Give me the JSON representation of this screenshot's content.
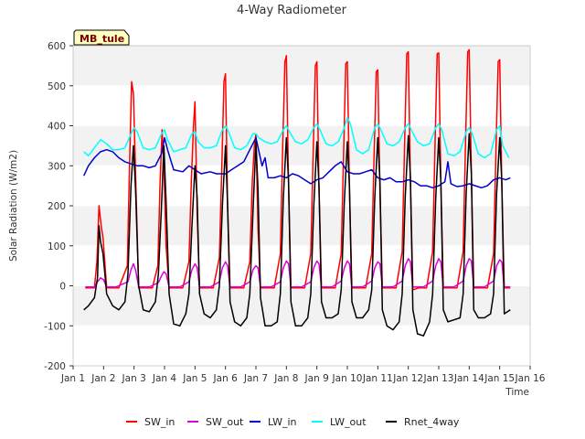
{
  "chart_data": {
    "type": "line",
    "title": "4-Way Radiometer",
    "xlabel": "Time",
    "ylabel": "Solar Radiation (W/m2)",
    "site_label": "MB_tule",
    "xlim": [
      1,
      16
    ],
    "ylim": [
      -200,
      600
    ],
    "x_ticks": [
      1,
      2,
      3,
      4,
      5,
      6,
      7,
      8,
      9,
      10,
      11,
      12,
      13,
      14,
      15,
      16
    ],
    "x_tick_labels": [
      "Jan 1",
      "Jan 2",
      "Jan 3",
      "Jan 4",
      "Jan 5",
      "Jan 6",
      "Jan 7",
      "Jan 8",
      "Jan 9",
      "Jan 10",
      "Jan 11",
      "Jan 12",
      "Jan 13",
      "Jan 14",
      "Jan 15",
      "Jan 16"
    ],
    "y_ticks": [
      -200,
      -100,
      0,
      100,
      200,
      300,
      400,
      500,
      600
    ],
    "y_tick_labels": [
      "-200",
      "-100",
      "0",
      "100",
      "200",
      "300",
      "400",
      "500",
      "600"
    ],
    "grid": true,
    "legend_position": "bottom",
    "series": [
      {
        "name": "SW_in",
        "color": "#ff0000",
        "x": [
          1.4,
          1.7,
          1.78,
          1.85,
          1.92,
          1.98,
          2.1,
          2.3,
          2.5,
          2.78,
          2.85,
          2.92,
          2.98,
          3.05,
          3.15,
          3.35,
          3.6,
          3.78,
          3.85,
          3.92,
          3.98,
          4.05,
          4.15,
          4.4,
          4.6,
          4.8,
          4.88,
          4.95,
          5.0,
          5.07,
          5.15,
          5.35,
          5.6,
          5.8,
          5.88,
          5.95,
          6.0,
          6.07,
          6.15,
          6.35,
          6.6,
          6.8,
          6.88,
          6.95,
          7.0,
          7.07,
          7.15,
          7.35,
          7.6,
          7.8,
          7.88,
          7.95,
          8.0,
          8.07,
          8.15,
          8.35,
          8.6,
          8.8,
          8.88,
          8.95,
          9.0,
          9.07,
          9.15,
          9.35,
          9.6,
          9.8,
          9.88,
          9.95,
          10.0,
          10.07,
          10.15,
          10.35,
          10.6,
          10.8,
          10.88,
          10.95,
          11.0,
          11.07,
          11.15,
          11.35,
          11.6,
          11.8,
          11.88,
          11.95,
          12.0,
          12.07,
          12.15,
          12.35,
          12.6,
          12.8,
          12.88,
          12.95,
          13.0,
          13.07,
          13.15,
          13.35,
          13.6,
          13.8,
          13.88,
          13.95,
          14.0,
          14.07,
          14.15,
          14.35,
          14.6,
          14.8,
          14.88,
          14.95,
          15.0,
          15.07,
          15.15,
          15.35
        ],
        "values": [
          -5,
          -5,
          60,
          200,
          150,
          120,
          -5,
          -5,
          -5,
          50,
          300,
          510,
          480,
          280,
          -5,
          -5,
          -5,
          50,
          250,
          390,
          300,
          100,
          -5,
          -5,
          -5,
          60,
          260,
          400,
          460,
          180,
          -5,
          -5,
          -5,
          70,
          300,
          510,
          530,
          200,
          -5,
          -5,
          -5,
          60,
          260,
          350,
          380,
          140,
          -5,
          -5,
          -5,
          80,
          350,
          560,
          575,
          250,
          -5,
          -5,
          -5,
          80,
          340,
          550,
          560,
          240,
          -5,
          -5,
          -5,
          80,
          340,
          555,
          560,
          240,
          -5,
          -5,
          -5,
          80,
          330,
          535,
          540,
          230,
          -5,
          -5,
          -5,
          85,
          360,
          580,
          585,
          260,
          -10,
          -5,
          -5,
          85,
          360,
          580,
          582,
          260,
          -5,
          -5,
          -5,
          85,
          360,
          585,
          590,
          280,
          -5,
          -5,
          -5,
          80,
          350,
          560,
          565,
          250,
          -5,
          -5
        ]
      },
      {
        "name": "SW_out",
        "color": "#dd00dd",
        "x": [
          1.4,
          1.7,
          1.8,
          1.9,
          2.0,
          2.1,
          2.4,
          2.8,
          2.9,
          2.98,
          3.05,
          3.15,
          3.5,
          3.8,
          3.9,
          3.98,
          4.05,
          4.15,
          4.5,
          4.8,
          4.9,
          5.0,
          5.07,
          5.15,
          5.5,
          5.8,
          5.9,
          6.0,
          6.07,
          6.15,
          6.5,
          6.8,
          6.9,
          7.0,
          7.07,
          7.15,
          7.5,
          7.8,
          7.9,
          8.0,
          8.07,
          8.15,
          8.5,
          8.8,
          8.9,
          9.0,
          9.07,
          9.15,
          9.5,
          9.8,
          9.9,
          10.0,
          10.07,
          10.15,
          10.5,
          10.8,
          10.9,
          11.0,
          11.07,
          11.15,
          11.5,
          11.8,
          11.9,
          12.0,
          12.07,
          12.15,
          12.5,
          12.8,
          12.9,
          13.0,
          13.07,
          13.15,
          13.5,
          13.8,
          13.9,
          14.0,
          14.07,
          14.15,
          14.5,
          14.8,
          14.9,
          15.0,
          15.07,
          15.15,
          15.35
        ],
        "values": [
          -3,
          -3,
          10,
          20,
          15,
          -3,
          -3,
          10,
          40,
          55,
          40,
          -3,
          -3,
          8,
          25,
          35,
          30,
          -3,
          -3,
          10,
          40,
          55,
          45,
          -3,
          -3,
          10,
          45,
          60,
          50,
          -3,
          -3,
          10,
          40,
          50,
          45,
          -3,
          -3,
          10,
          45,
          62,
          55,
          -3,
          -3,
          10,
          45,
          62,
          55,
          -3,
          -3,
          12,
          45,
          62,
          55,
          -3,
          -3,
          12,
          45,
          60,
          55,
          -3,
          -3,
          12,
          50,
          68,
          60,
          -3,
          -3,
          12,
          50,
          68,
          60,
          -3,
          -3,
          12,
          50,
          68,
          62,
          -3,
          -3,
          12,
          50,
          65,
          60,
          -3,
          -3
        ]
      },
      {
        "name": "LW_in",
        "color": "#0000cc",
        "x": [
          1.35,
          1.5,
          1.7,
          1.9,
          2.1,
          2.3,
          2.5,
          2.7,
          2.9,
          3.1,
          3.3,
          3.5,
          3.7,
          3.9,
          4.0,
          4.1,
          4.3,
          4.6,
          4.8,
          5.0,
          5.2,
          5.5,
          5.7,
          5.9,
          6.0,
          6.2,
          6.4,
          6.6,
          6.8,
          7.0,
          7.2,
          7.3,
          7.4,
          7.6,
          7.8,
          8.0,
          8.2,
          8.4,
          8.6,
          8.8,
          9.0,
          9.2,
          9.4,
          9.6,
          9.8,
          10.0,
          10.2,
          10.4,
          10.6,
          10.8,
          11.0,
          11.2,
          11.4,
          11.6,
          11.8,
          12.0,
          12.2,
          12.4,
          12.6,
          12.8,
          13.0,
          13.2,
          13.3,
          13.4,
          13.6,
          13.8,
          14.0,
          14.2,
          14.4,
          14.6,
          14.8,
          15.0,
          15.2,
          15.35
        ],
        "values": [
          275,
          300,
          320,
          335,
          340,
          335,
          320,
          310,
          305,
          300,
          300,
          295,
          300,
          330,
          370,
          340,
          290,
          285,
          300,
          290,
          280,
          285,
          280,
          280,
          280,
          290,
          300,
          310,
          340,
          370,
          300,
          320,
          270,
          270,
          275,
          270,
          280,
          275,
          265,
          255,
          265,
          270,
          285,
          300,
          310,
          285,
          280,
          280,
          285,
          290,
          270,
          265,
          270,
          260,
          260,
          265,
          260,
          250,
          250,
          245,
          250,
          260,
          310,
          255,
          248,
          250,
          255,
          250,
          245,
          250,
          265,
          270,
          265,
          270
        ]
      },
      {
        "name": "LW_out",
        "color": "#00ffff",
        "x": [
          1.35,
          1.5,
          1.7,
          1.9,
          2.1,
          2.3,
          2.5,
          2.7,
          2.9,
          3.0,
          3.1,
          3.3,
          3.5,
          3.7,
          3.9,
          4.0,
          4.1,
          4.3,
          4.5,
          4.7,
          4.9,
          5.0,
          5.1,
          5.3,
          5.5,
          5.7,
          5.9,
          6.0,
          6.1,
          6.3,
          6.5,
          6.7,
          6.9,
          7.0,
          7.1,
          7.3,
          7.5,
          7.7,
          7.9,
          8.0,
          8.1,
          8.3,
          8.5,
          8.7,
          8.9,
          9.0,
          9.1,
          9.3,
          9.5,
          9.7,
          9.9,
          10.0,
          10.1,
          10.3,
          10.5,
          10.7,
          10.9,
          11.0,
          11.1,
          11.3,
          11.5,
          11.7,
          11.9,
          12.0,
          12.1,
          12.3,
          12.5,
          12.7,
          12.9,
          13.0,
          13.1,
          13.3,
          13.5,
          13.7,
          13.9,
          14.0,
          14.1,
          14.3,
          14.5,
          14.7,
          14.9,
          15.0,
          15.1,
          15.3
        ],
        "values": [
          335,
          325,
          345,
          365,
          355,
          340,
          340,
          345,
          380,
          395,
          385,
          345,
          340,
          345,
          380,
          390,
          365,
          335,
          340,
          345,
          380,
          385,
          360,
          345,
          345,
          350,
          390,
          400,
          385,
          345,
          340,
          350,
          380,
          380,
          370,
          360,
          355,
          360,
          390,
          400,
          385,
          360,
          355,
          365,
          395,
          405,
          390,
          355,
          350,
          360,
          395,
          420,
          405,
          340,
          330,
          340,
          395,
          405,
          390,
          355,
          350,
          360,
          395,
          405,
          390,
          360,
          350,
          355,
          395,
          405,
          390,
          330,
          325,
          335,
          385,
          395,
          380,
          330,
          320,
          330,
          390,
          400,
          350,
          320
        ]
      },
      {
        "name": "Rnet_4way",
        "color": "#000000",
        "x": [
          1.35,
          1.5,
          1.7,
          1.8,
          1.85,
          1.9,
          1.98,
          2.1,
          2.3,
          2.5,
          2.7,
          2.8,
          2.9,
          2.98,
          3.05,
          3.15,
          3.3,
          3.5,
          3.7,
          3.8,
          3.9,
          3.98,
          4.05,
          4.15,
          4.3,
          4.5,
          4.7,
          4.8,
          4.9,
          5.0,
          5.07,
          5.15,
          5.3,
          5.5,
          5.7,
          5.8,
          5.9,
          6.0,
          6.07,
          6.15,
          6.3,
          6.5,
          6.7,
          6.8,
          6.9,
          7.0,
          7.07,
          7.15,
          7.3,
          7.5,
          7.7,
          7.8,
          7.9,
          8.0,
          8.07,
          8.15,
          8.3,
          8.5,
          8.7,
          8.8,
          8.9,
          9.0,
          9.07,
          9.15,
          9.3,
          9.5,
          9.7,
          9.8,
          9.9,
          10.0,
          10.07,
          10.15,
          10.3,
          10.5,
          10.7,
          10.8,
          10.9,
          11.0,
          11.07,
          11.15,
          11.3,
          11.5,
          11.7,
          11.8,
          11.9,
          12.0,
          12.07,
          12.15,
          12.3,
          12.5,
          12.7,
          12.8,
          12.9,
          13.0,
          13.07,
          13.15,
          13.3,
          13.5,
          13.7,
          13.8,
          13.9,
          14.0,
          14.07,
          14.15,
          14.3,
          14.5,
          14.7,
          14.8,
          14.9,
          15.0,
          15.07,
          15.15,
          15.35
        ],
        "values": [
          -60,
          -50,
          -30,
          20,
          150,
          110,
          80,
          -20,
          -50,
          -60,
          -40,
          30,
          250,
          350,
          240,
          0,
          -60,
          -65,
          -40,
          30,
          200,
          350,
          210,
          -20,
          -95,
          -100,
          -70,
          -20,
          150,
          300,
          220,
          -20,
          -70,
          -80,
          -60,
          0,
          200,
          350,
          200,
          -40,
          -90,
          -100,
          -80,
          -20,
          180,
          360,
          240,
          -30,
          -100,
          -100,
          -90,
          -20,
          220,
          370,
          260,
          -40,
          -100,
          -100,
          -80,
          -20,
          200,
          360,
          250,
          -40,
          -80,
          -80,
          -70,
          -10,
          210,
          360,
          250,
          -40,
          -80,
          -80,
          -60,
          -10,
          220,
          370,
          260,
          -60,
          -100,
          -110,
          -90,
          -20,
          220,
          375,
          270,
          -60,
          -120,
          -125,
          -90,
          -20,
          220,
          370,
          260,
          -60,
          -90,
          -85,
          -80,
          -20,
          230,
          380,
          280,
          -60,
          -80,
          -80,
          -70,
          -20,
          230,
          370,
          260,
          -70,
          -60
        ]
      }
    ]
  }
}
